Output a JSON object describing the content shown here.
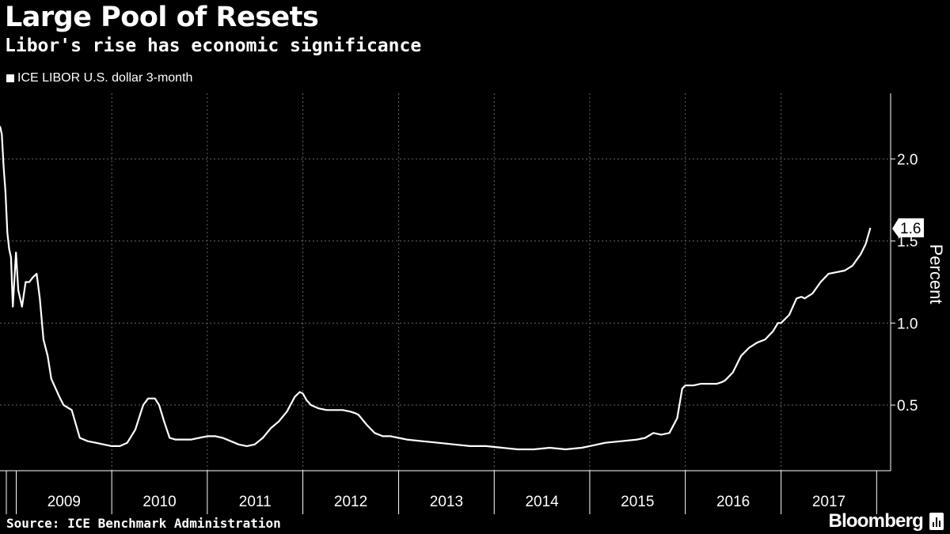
{
  "title": "Large Pool of Resets",
  "subtitle": "Libor's rise has economic significance",
  "source": "Source: ICE Benchmark Administration",
  "brand": "Bloomberg",
  "colors": {
    "background": "#000000",
    "line": "#ffffff",
    "grid": "#666666"
  },
  "chart_data": {
    "type": "line",
    "series": [
      {
        "name": "ICE LIBOR U.S. dollar 3-month",
        "x": [
          "2008-10-31",
          "2008-11-07",
          "2008-11-14",
          "2008-11-21",
          "2008-11-28",
          "2008-12-05",
          "2008-12-12",
          "2008-12-19",
          "2008-12-31",
          "2009-01-09",
          "2009-01-23",
          "2009-02-06",
          "2009-02-20",
          "2009-03-06",
          "2009-03-20",
          "2009-04-01",
          "2009-04-15",
          "2009-05-01",
          "2009-05-15",
          "2009-06-01",
          "2009-06-15",
          "2009-07-01",
          "2009-08-01",
          "2009-09-01",
          "2009-10-01",
          "2009-11-01",
          "2009-12-01",
          "2010-01-01",
          "2010-02-01",
          "2010-03-01",
          "2010-04-01",
          "2010-05-01",
          "2010-05-20",
          "2010-06-15",
          "2010-07-01",
          "2010-07-20",
          "2010-08-10",
          "2010-09-01",
          "2010-10-01",
          "2010-11-01",
          "2010-12-01",
          "2011-01-01",
          "2011-02-01",
          "2011-03-01",
          "2011-04-01",
          "2011-05-01",
          "2011-06-01",
          "2011-07-01",
          "2011-08-01",
          "2011-09-01",
          "2011-10-01",
          "2011-11-01",
          "2011-12-01",
          "2011-12-20",
          "2012-01-01",
          "2012-01-15",
          "2012-02-01",
          "2012-03-01",
          "2012-04-01",
          "2012-05-01",
          "2012-06-01",
          "2012-07-01",
          "2012-07-20",
          "2012-08-01",
          "2012-09-01",
          "2012-10-01",
          "2012-11-01",
          "2012-12-01",
          "2013-01-01",
          "2013-02-01",
          "2013-04-01",
          "2013-06-01",
          "2013-08-01",
          "2013-10-01",
          "2013-12-01",
          "2014-02-01",
          "2014-04-01",
          "2014-06-01",
          "2014-08-01",
          "2014-10-01",
          "2014-12-01",
          "2015-01-01",
          "2015-03-01",
          "2015-05-01",
          "2015-07-01",
          "2015-08-01",
          "2015-09-01",
          "2015-10-01",
          "2015-11-01",
          "2015-12-01",
          "2015-12-20",
          "2016-01-01",
          "2016-02-01",
          "2016-03-01",
          "2016-04-01",
          "2016-05-01",
          "2016-05-20",
          "2016-06-01",
          "2016-07-01",
          "2016-08-01",
          "2016-09-01",
          "2016-10-01",
          "2016-11-01",
          "2016-12-01",
          "2016-12-20",
          "2017-01-01",
          "2017-02-01",
          "2017-03-01",
          "2017-03-20",
          "2017-04-01",
          "2017-05-01",
          "2017-06-01",
          "2017-07-01",
          "2017-08-01",
          "2017-09-01",
          "2017-10-01",
          "2017-11-01",
          "2017-11-20",
          "2017-12-08"
        ],
        "y": [
          2.2,
          2.15,
          1.95,
          1.8,
          1.55,
          1.45,
          1.4,
          1.1,
          1.43,
          1.2,
          1.1,
          1.25,
          1.25,
          1.28,
          1.3,
          1.15,
          0.9,
          0.8,
          0.66,
          0.6,
          0.55,
          0.5,
          0.47,
          0.3,
          0.28,
          0.27,
          0.26,
          0.25,
          0.25,
          0.27,
          0.35,
          0.5,
          0.54,
          0.54,
          0.5,
          0.4,
          0.3,
          0.29,
          0.29,
          0.29,
          0.3,
          0.31,
          0.31,
          0.3,
          0.28,
          0.26,
          0.25,
          0.26,
          0.3,
          0.36,
          0.4,
          0.46,
          0.55,
          0.58,
          0.57,
          0.53,
          0.5,
          0.48,
          0.47,
          0.47,
          0.47,
          0.46,
          0.45,
          0.44,
          0.38,
          0.33,
          0.31,
          0.31,
          0.3,
          0.29,
          0.28,
          0.27,
          0.26,
          0.25,
          0.25,
          0.24,
          0.23,
          0.23,
          0.24,
          0.23,
          0.24,
          0.25,
          0.27,
          0.28,
          0.29,
          0.3,
          0.33,
          0.32,
          0.33,
          0.42,
          0.6,
          0.62,
          0.62,
          0.63,
          0.63,
          0.63,
          0.64,
          0.65,
          0.7,
          0.8,
          0.85,
          0.88,
          0.9,
          0.95,
          1.0,
          1.0,
          1.05,
          1.15,
          1.16,
          1.15,
          1.18,
          1.25,
          1.3,
          1.31,
          1.32,
          1.35,
          1.42,
          1.48,
          1.58
        ]
      }
    ],
    "x_tick_labels": [
      "2009",
      "2010",
      "2011",
      "2012",
      "2013",
      "2014",
      "2015",
      "2016",
      "2017"
    ],
    "y_ticks": [
      0.5,
      1.0,
      1.5,
      2.0
    ],
    "y_tick_labels": [
      "0.5",
      "1.0",
      "1.5",
      "2.0"
    ],
    "ylabel": "Percent",
    "last_value_label": "1.6",
    "ylim": [
      0.1,
      2.4
    ],
    "xlim": [
      "2008-10-31",
      "2017-12-31"
    ],
    "grid": true,
    "legend_position": "top-left"
  }
}
